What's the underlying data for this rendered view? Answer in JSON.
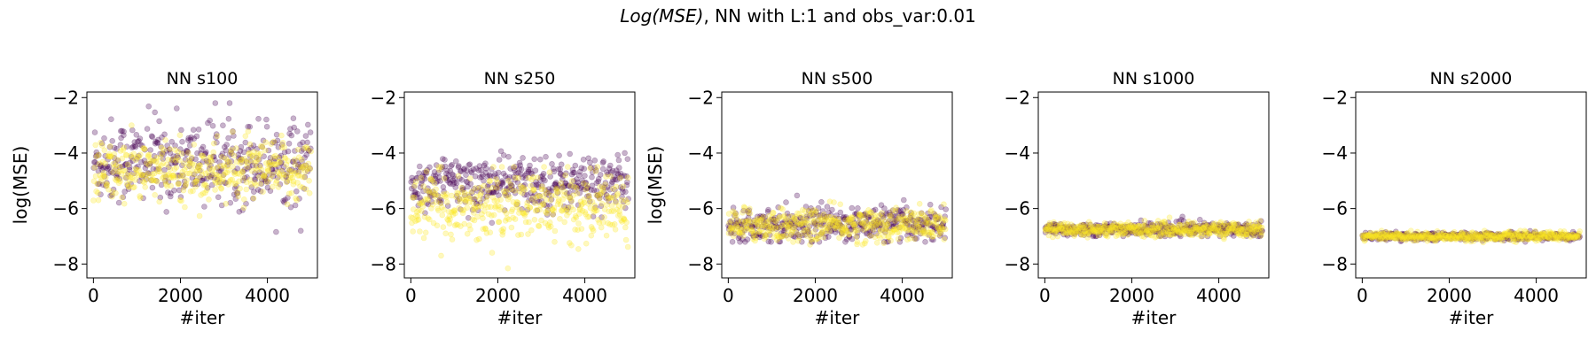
{
  "figure": {
    "title_italic": "Log(MSE)",
    "title_rest": ", NN with L:1 and obs_var:0.01"
  },
  "chart_data": [
    {
      "type": "scatter",
      "title": "NN s100",
      "xlabel": "#iter",
      "ylabel": "log(MSE)",
      "xlim": [
        -150,
        5150
      ],
      "ylim": [
        -8.5,
        -1.8
      ],
      "xticks": [
        0,
        2000,
        4000
      ],
      "yticks": [
        -2,
        -4,
        -6,
        -8
      ],
      "n_points": 5000,
      "series": [
        {
          "color": "#440154",
          "alpha": 0.3,
          "center": -4.3,
          "spread": 0.75,
          "min": -7.4,
          "max": -2.2
        },
        {
          "color": "#fde725",
          "alpha": 0.3,
          "center": -4.7,
          "spread": 0.55,
          "min": -6.5,
          "max": -3.0
        }
      ]
    },
    {
      "type": "scatter",
      "title": "NN s250",
      "xlabel": "#iter",
      "ylabel": "",
      "xlim": [
        -150,
        5150
      ],
      "ylim": [
        -8.5,
        -1.8
      ],
      "xticks": [
        0,
        2000,
        4000
      ],
      "yticks": [
        -2,
        -4,
        -6,
        -8
      ],
      "n_points": 5000,
      "series": [
        {
          "color": "#440154",
          "alpha": 0.3,
          "center": -5.1,
          "spread": 0.5,
          "min": -7.5,
          "max": -3.6
        },
        {
          "color": "#fde725",
          "alpha": 0.3,
          "center": -5.9,
          "spread": 0.6,
          "min": -8.2,
          "max": -4.5
        }
      ]
    },
    {
      "type": "scatter",
      "title": "NN s500",
      "xlabel": "#iter",
      "ylabel": "log(MSE)",
      "xlim": [
        -150,
        5150
      ],
      "ylim": [
        -8.5,
        -1.8
      ],
      "xticks": [
        0,
        2000,
        4000
      ],
      "yticks": [
        -2,
        -4,
        -6,
        -8
      ],
      "n_points": 5000,
      "series": [
        {
          "color": "#440154",
          "alpha": 0.3,
          "center": -6.55,
          "spread": 0.3,
          "min": -7.2,
          "max": -5.2
        },
        {
          "color": "#fde725",
          "alpha": 0.3,
          "center": -6.6,
          "spread": 0.3,
          "min": -7.3,
          "max": -5.1
        }
      ]
    },
    {
      "type": "scatter",
      "title": "NN s1000",
      "xlabel": "#iter",
      "ylabel": "",
      "xlim": [
        -150,
        5150
      ],
      "ylim": [
        -8.5,
        -1.8
      ],
      "xticks": [
        0,
        2000,
        4000
      ],
      "yticks": [
        -2,
        -4,
        -6,
        -8
      ],
      "n_points": 5000,
      "series": [
        {
          "color": "#440154",
          "alpha": 0.3,
          "center": -6.75,
          "spread": 0.12,
          "min": -7.0,
          "max": -6.2
        },
        {
          "color": "#fde725",
          "alpha": 0.3,
          "center": -6.75,
          "spread": 0.13,
          "min": -7.1,
          "max": -6.2
        }
      ]
    },
    {
      "type": "scatter",
      "title": "NN s2000",
      "xlabel": "#iter",
      "ylabel": "",
      "xlim": [
        -150,
        5150
      ],
      "ylim": [
        -8.5,
        -1.8
      ],
      "xticks": [
        0,
        2000,
        4000
      ],
      "yticks": [
        -2,
        -4,
        -6,
        -8
      ],
      "n_points": 5000,
      "series": [
        {
          "color": "#440154",
          "alpha": 0.3,
          "center": -7.0,
          "spread": 0.07,
          "min": -7.2,
          "max": -6.8
        },
        {
          "color": "#fde725",
          "alpha": 0.3,
          "center": -7.0,
          "spread": 0.08,
          "min": -7.25,
          "max": -6.8
        }
      ]
    }
  ]
}
